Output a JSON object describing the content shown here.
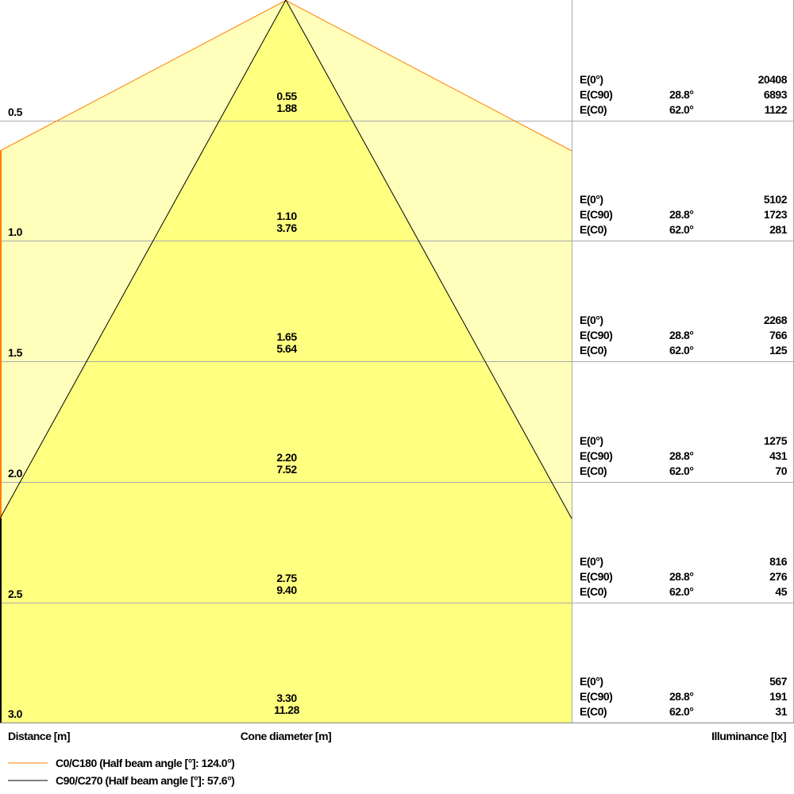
{
  "colors": {
    "c0_line": "#ff8000",
    "c90_line": "#000000",
    "outer_fill": "#ffffbb",
    "inner_fill": "#ffff80",
    "grid": "#aaaaaa"
  },
  "rows": [
    {
      "distance": "0.5",
      "c90_diameter": "0.55",
      "c0_diameter": "1.88",
      "e0": "20408",
      "ec90": "6893",
      "ec0": "1122"
    },
    {
      "distance": "1.0",
      "c90_diameter": "1.10",
      "c0_diameter": "3.76",
      "e0": "5102",
      "ec90": "1723",
      "ec0": "281"
    },
    {
      "distance": "1.5",
      "c90_diameter": "1.65",
      "c0_diameter": "5.64",
      "e0": "2268",
      "ec90": "766",
      "ec0": "125"
    },
    {
      "distance": "2.0",
      "c90_diameter": "2.20",
      "c0_diameter": "7.52",
      "e0": "1275",
      "ec90": "431",
      "ec0": "70"
    },
    {
      "distance": "2.5",
      "c90_diameter": "2.75",
      "c0_diameter": "9.40",
      "e0": "816",
      "ec90": "276",
      "ec0": "45"
    },
    {
      "distance": "3.0",
      "c90_diameter": "3.30",
      "c0_diameter": "11.28",
      "e0": "567",
      "ec90": "191",
      "ec0": "31"
    }
  ],
  "labels": {
    "e0": "E(0°)",
    "ec90": "E(C90)",
    "ec0": "E(C0)",
    "angle_c90": "28.8°",
    "angle_c0": "62.0°"
  },
  "axis": {
    "distance": "Distance [m]",
    "cone": "Cone diameter [m]",
    "illuminance": "Illuminance [lx]"
  },
  "legend": [
    {
      "label": "C0/C180 (Half beam angle [°]: 124.0°)",
      "color": "#ff8000"
    },
    {
      "label": "C90/C270 (Half beam angle [°]: 57.6°)",
      "color": "#000000"
    }
  ]
}
